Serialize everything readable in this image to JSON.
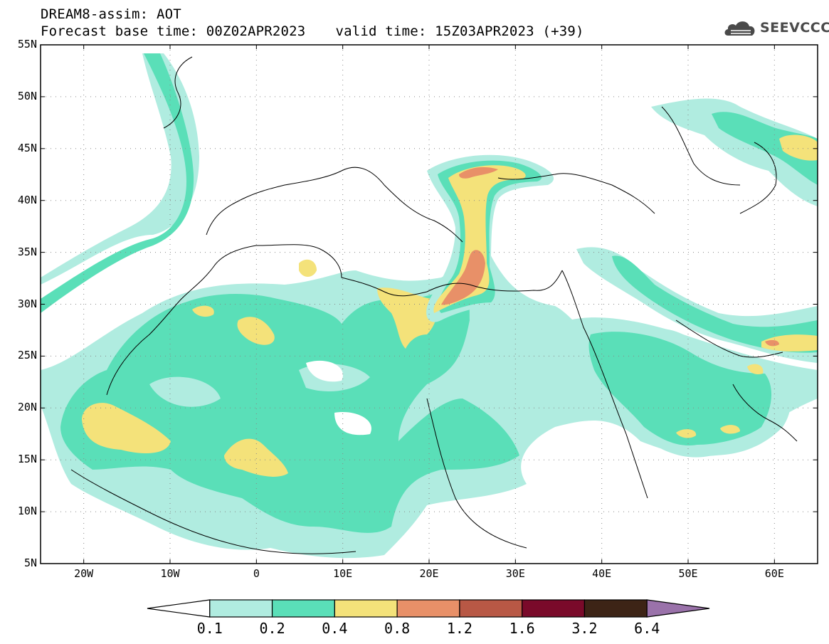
{
  "header": {
    "line1": "DREAM8-assim: AOT",
    "base_time": "Forecast base time: 00Z02APR2023",
    "valid_time": "valid time: 15Z03APR2023 (+39)"
  },
  "logo": {
    "text": "SEEVCCC",
    "icon": "cloud-icon"
  },
  "map": {
    "lon_range": [
      -25,
      65
    ],
    "lat_range": [
      5,
      55
    ],
    "lat_labels": [
      "55N",
      "50N",
      "45N",
      "40N",
      "35N",
      "30N",
      "25N",
      "20N",
      "15N",
      "10N",
      "5N"
    ],
    "lon_labels": [
      "20W",
      "10W",
      "0",
      "10E",
      "20E",
      "30E",
      "40E",
      "50E",
      "60E"
    ],
    "grid": "dotted"
  },
  "colorbar": {
    "levels": [
      "0.1",
      "0.2",
      "0.4",
      "0.8",
      "1.2",
      "1.6",
      "3.2",
      "6.4"
    ],
    "colors": [
      "#ffffff",
      "#b0ece0",
      "#5adfb8",
      "#f4e27a",
      "#e89068",
      "#b85845",
      "#7a0a2a",
      "#3d2416",
      "#9a72aa"
    ]
  }
}
